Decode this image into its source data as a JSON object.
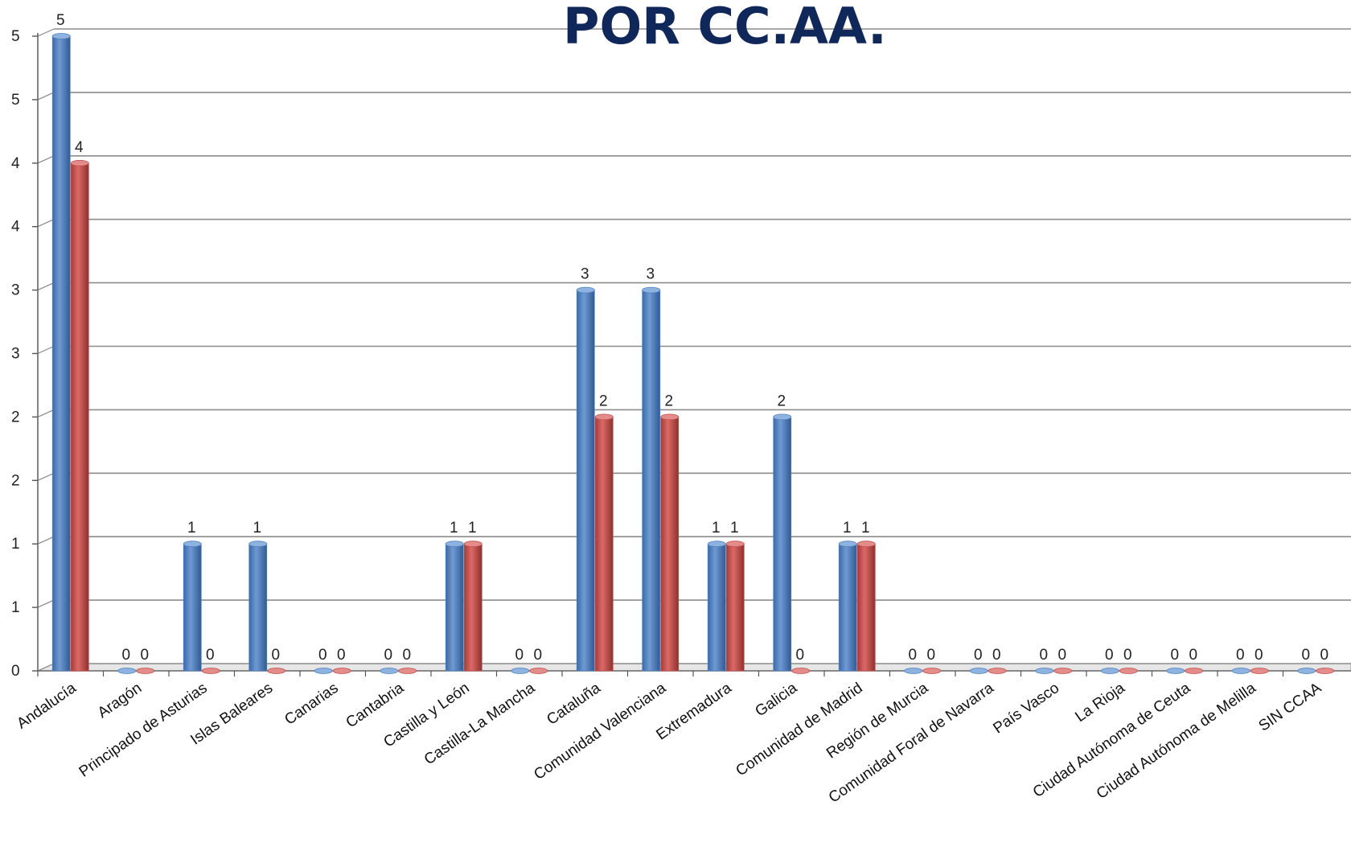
{
  "chart_data": {
    "type": "bar",
    "title": "POR CC.AA.",
    "categories": [
      "Andalucía",
      "Aragón",
      "Principado de Asturias",
      "Islas Baleares",
      "Canarias",
      "Cantabria",
      "Castilla y León",
      "Castilla-La Mancha",
      "Cataluña",
      "Comunidad Valenciana",
      "Extremadura",
      "Galicia",
      "Comunidad de Madrid",
      "Región de Murcia",
      "Comunidad Foral de Navarra",
      "País Vasco",
      "La Rioja",
      "Ciudad Autónoma de Ceuta",
      "Ciudad Autónoma de Melilla",
      "SIN CCAA"
    ],
    "series": [
      {
        "color": "#4f81bd",
        "values": [
          5,
          0,
          1,
          1,
          0,
          0,
          1,
          0,
          3,
          3,
          1,
          2,
          1,
          0,
          0,
          0,
          0,
          0,
          0,
          0
        ]
      },
      {
        "color": "#c0504d",
        "values": [
          4,
          0,
          0,
          0,
          0,
          0,
          1,
          0,
          2,
          2,
          1,
          0,
          1,
          0,
          0,
          0,
          0,
          0,
          0,
          0
        ]
      }
    ],
    "y_tick_labels": [
      "0",
      "1",
      "1",
      "2",
      "2",
      "3",
      "3",
      "4",
      "4",
      "5",
      "5"
    ],
    "ylim": [
      0,
      5
    ],
    "grid": true,
    "legend": "none",
    "title_color": "#10275a"
  }
}
